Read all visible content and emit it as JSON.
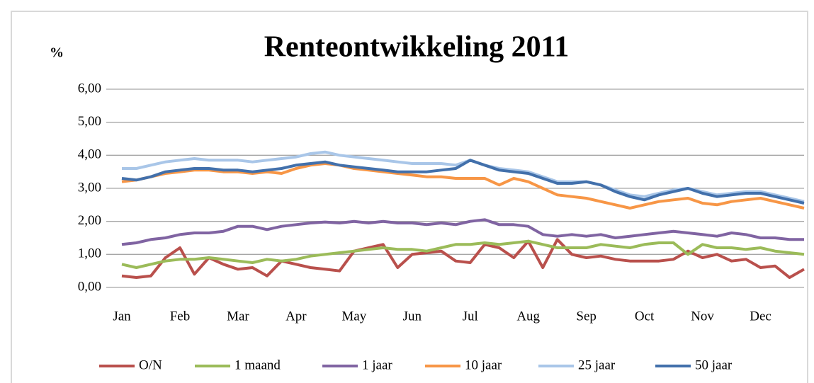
{
  "chart_data": {
    "type": "line",
    "title": "Renteontwikkeling 2011",
    "y_label": "%",
    "categories": [
      "Jan",
      null,
      null,
      null,
      "Feb",
      null,
      null,
      null,
      "Mar",
      null,
      null,
      null,
      "Apr",
      null,
      null,
      null,
      "May",
      null,
      null,
      null,
      "Jun",
      null,
      null,
      null,
      "Jul",
      null,
      null,
      null,
      "Aug",
      null,
      null,
      null,
      "Sep",
      null,
      null,
      null,
      "Oct",
      null,
      null,
      null,
      "Nov",
      null,
      null,
      null,
      "Dec",
      null,
      null,
      null
    ],
    "ylim": [
      0,
      6
    ],
    "yticks": [
      {
        "value": 0,
        "label": "0,00"
      },
      {
        "value": 1,
        "label": "1,00"
      },
      {
        "value": 2,
        "label": "2,00"
      },
      {
        "value": 3,
        "label": "3,00"
      },
      {
        "value": 4,
        "label": "4,00"
      },
      {
        "value": 5,
        "label": "5,00"
      },
      {
        "value": 6,
        "label": "6,00"
      }
    ],
    "grid": true,
    "legend": "bottom",
    "series": [
      {
        "name": "O/N",
        "color": "#b9504c",
        "values": [
          0.35,
          0.3,
          0.35,
          0.9,
          1.2,
          0.4,
          0.9,
          0.7,
          0.55,
          0.6,
          0.35,
          0.8,
          0.7,
          0.6,
          0.55,
          0.5,
          1.1,
          1.2,
          1.3,
          0.6,
          1.0,
          1.05,
          1.1,
          0.8,
          0.75,
          1.3,
          1.2,
          0.9,
          1.4,
          0.6,
          1.45,
          1.0,
          0.9,
          0.95,
          0.85,
          0.8,
          0.8,
          0.8,
          0.85,
          1.1,
          0.9,
          1.0,
          0.8,
          0.85,
          0.6,
          0.65,
          0.3,
          0.55
        ]
      },
      {
        "name": "1 maand",
        "color": "#9bbb59",
        "values": [
          0.7,
          0.6,
          0.7,
          0.8,
          0.85,
          0.85,
          0.9,
          0.85,
          0.8,
          0.75,
          0.85,
          0.8,
          0.85,
          0.95,
          1.0,
          1.05,
          1.1,
          1.15,
          1.2,
          1.15,
          1.15,
          1.1,
          1.2,
          1.3,
          1.3,
          1.35,
          1.3,
          1.35,
          1.4,
          1.3,
          1.2,
          1.2,
          1.2,
          1.3,
          1.25,
          1.2,
          1.3,
          1.35,
          1.35,
          1.0,
          1.3,
          1.2,
          1.2,
          1.15,
          1.2,
          1.1,
          1.05,
          1.0
        ]
      },
      {
        "name": "1 jaar",
        "color": "#8064a2",
        "values": [
          1.3,
          1.35,
          1.45,
          1.5,
          1.6,
          1.65,
          1.65,
          1.7,
          1.85,
          1.85,
          1.75,
          1.85,
          1.9,
          1.95,
          1.98,
          1.95,
          2.0,
          1.95,
          2.0,
          1.95,
          1.95,
          1.9,
          1.95,
          1.9,
          2.0,
          2.05,
          1.9,
          1.9,
          1.85,
          1.6,
          1.55,
          1.6,
          1.55,
          1.6,
          1.5,
          1.55,
          1.6,
          1.65,
          1.7,
          1.65,
          1.6,
          1.55,
          1.65,
          1.6,
          1.5,
          1.5,
          1.45,
          1.45
        ]
      },
      {
        "name": "10 jaar",
        "color": "#f79646",
        "values": [
          3.2,
          3.25,
          3.35,
          3.45,
          3.5,
          3.55,
          3.55,
          3.5,
          3.5,
          3.45,
          3.5,
          3.45,
          3.6,
          3.7,
          3.75,
          3.7,
          3.6,
          3.55,
          3.5,
          3.45,
          3.4,
          3.35,
          3.35,
          3.3,
          3.3,
          3.3,
          3.1,
          3.3,
          3.2,
          3.0,
          2.8,
          2.75,
          2.7,
          2.6,
          2.5,
          2.4,
          2.5,
          2.6,
          2.65,
          2.7,
          2.55,
          2.5,
          2.6,
          2.65,
          2.7,
          2.6,
          2.5,
          2.4
        ]
      },
      {
        "name": "25 jaar",
        "color": "#a9c6e8",
        "values": [
          3.6,
          3.6,
          3.7,
          3.8,
          3.85,
          3.9,
          3.85,
          3.85,
          3.85,
          3.8,
          3.85,
          3.9,
          3.95,
          4.05,
          4.1,
          4.0,
          3.95,
          3.9,
          3.85,
          3.8,
          3.75,
          3.75,
          3.75,
          3.7,
          3.85,
          3.7,
          3.6,
          3.55,
          3.5,
          3.35,
          3.2,
          3.2,
          3.2,
          3.1,
          2.95,
          2.8,
          2.75,
          2.85,
          2.95,
          3.0,
          2.9,
          2.8,
          2.85,
          2.9,
          2.9,
          2.8,
          2.7,
          2.6
        ]
      },
      {
        "name": "50 jaar",
        "color": "#4270ab",
        "values": [
          3.3,
          3.25,
          3.35,
          3.5,
          3.55,
          3.6,
          3.6,
          3.55,
          3.55,
          3.5,
          3.55,
          3.6,
          3.7,
          3.75,
          3.8,
          3.7,
          3.65,
          3.6,
          3.55,
          3.5,
          3.5,
          3.5,
          3.55,
          3.6,
          3.85,
          3.7,
          3.55,
          3.5,
          3.45,
          3.3,
          3.15,
          3.15,
          3.2,
          3.1,
          2.9,
          2.75,
          2.65,
          2.8,
          2.9,
          3.0,
          2.85,
          2.75,
          2.8,
          2.85,
          2.85,
          2.75,
          2.65,
          2.55
        ]
      }
    ]
  }
}
